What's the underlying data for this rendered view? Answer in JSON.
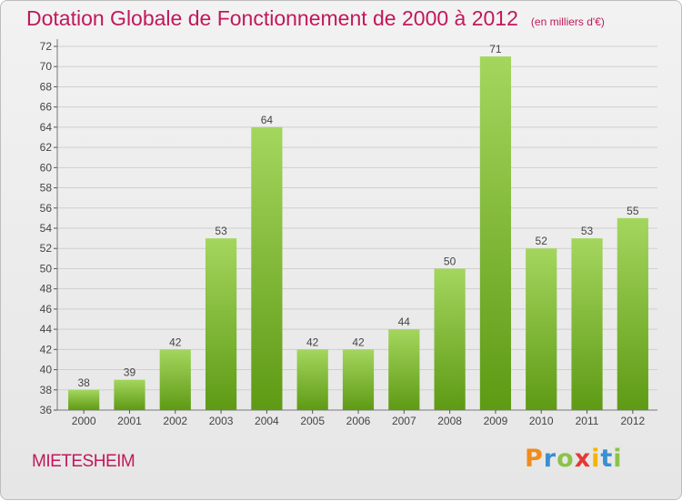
{
  "title": "Dotation Globale de Fonctionnement de 2000 à 2012",
  "subtitle": "(en milliers d'€)",
  "commune": "MIETESHEIM",
  "logo": {
    "letters": [
      "P",
      "r",
      "o",
      "x",
      "i",
      "t",
      "i"
    ],
    "colors": [
      "#f08c1a",
      "#3a8fd0",
      "#8bc34a",
      "#e53935",
      "#f5b400",
      "#3a8fd0",
      "#8bc34a"
    ]
  },
  "colors": {
    "bar_top": "#a4d65e",
    "bar_bottom": "#5e9a14",
    "title": "#c2185b",
    "grid": "#cfcfcf"
  },
  "chart_data": {
    "type": "bar",
    "categories": [
      "2000",
      "2001",
      "2002",
      "2003",
      "2004",
      "2005",
      "2006",
      "2007",
      "2008",
      "2009",
      "2010",
      "2011",
      "2012"
    ],
    "values": [
      38,
      39,
      42,
      53,
      64,
      42,
      42,
      44,
      50,
      71,
      52,
      53,
      55
    ],
    "ylim": [
      36,
      72
    ],
    "yticks": [
      36,
      38,
      40,
      42,
      44,
      46,
      48,
      50,
      52,
      54,
      56,
      58,
      60,
      62,
      64,
      66,
      68,
      70,
      72
    ],
    "grid": true
  }
}
